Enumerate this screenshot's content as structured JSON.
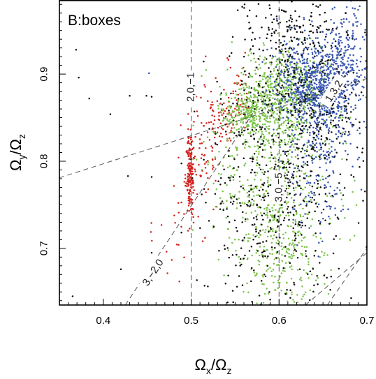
{
  "chart_data": {
    "type": "scatter",
    "panel_label": "B:boxes",
    "xlim": [
      0.35,
      0.7
    ],
    "ylim": [
      0.635,
      0.985
    ],
    "xticks": [
      0.4,
      0.5,
      0.6,
      0.7
    ],
    "yticks": [
      0.7,
      0.8,
      0.9
    ],
    "xtick_labels": [
      "0.4",
      "0.5",
      "0.6",
      "0.7"
    ],
    "ytick_labels": [
      "0.7",
      "0.8",
      "0.9"
    ],
    "xlabel": {
      "main": "Ω",
      "sub1": "x",
      "sep": "/Ω",
      "sub2": "z"
    },
    "ylabel": {
      "main": "Ω",
      "sub1": "y",
      "sep": "/Ω",
      "sub2": "z"
    },
    "grid": false,
    "colors": {
      "black": "#111111",
      "red": "#d4231e",
      "green": "#7cc24a",
      "blue": "#3a56b0"
    },
    "series": [
      {
        "color_key": "red",
        "clusters": [
          {
            "cx": 0.499,
            "cy": 0.785,
            "sx": 0.0025,
            "sy": 0.022,
            "n": 160
          },
          {
            "cx": 0.515,
            "cy": 0.805,
            "sx": 0.012,
            "sy": 0.03,
            "n": 60
          },
          {
            "cx": 0.535,
            "cy": 0.85,
            "sx": 0.012,
            "sy": 0.02,
            "n": 80
          },
          {
            "cx": 0.555,
            "cy": 0.875,
            "sx": 0.006,
            "sy": 0.02,
            "n": 40
          },
          {
            "cx": 0.48,
            "cy": 0.715,
            "sx": 0.015,
            "sy": 0.04,
            "n": 25
          }
        ]
      },
      {
        "color_key": "green",
        "clusters": [
          {
            "cx": 0.605,
            "cy": 0.875,
            "sx": 0.028,
            "sy": 0.025,
            "n": 600
          },
          {
            "cx": 0.59,
            "cy": 0.79,
            "sx": 0.033,
            "sy": 0.06,
            "n": 550
          },
          {
            "cx": 0.565,
            "cy": 0.855,
            "sx": 0.012,
            "sy": 0.012,
            "n": 180
          },
          {
            "cx": 0.6,
            "cy": 0.69,
            "sx": 0.025,
            "sy": 0.035,
            "n": 200
          }
        ]
      },
      {
        "color_key": "blue",
        "clusters": [
          {
            "cx": 0.645,
            "cy": 0.89,
            "sx": 0.023,
            "sy": 0.026,
            "n": 800
          },
          {
            "cx": 0.645,
            "cy": 0.8,
            "sx": 0.02,
            "sy": 0.045,
            "n": 220
          },
          {
            "cx": 0.68,
            "cy": 0.93,
            "sx": 0.012,
            "sy": 0.03,
            "n": 150
          }
        ]
      },
      {
        "color_key": "black",
        "clusters": [
          {
            "cx": 0.62,
            "cy": 0.86,
            "sx": 0.04,
            "sy": 0.05,
            "n": 420
          },
          {
            "cx": 0.595,
            "cy": 0.74,
            "sx": 0.04,
            "sy": 0.055,
            "n": 350
          },
          {
            "cx": 0.62,
            "cy": 0.95,
            "sx": 0.035,
            "sy": 0.02,
            "n": 130
          }
        ]
      }
    ],
    "outliers": [
      {
        "x": 0.369,
        "y": 0.928,
        "c": "black"
      },
      {
        "x": 0.372,
        "y": 0.896,
        "c": "black"
      },
      {
        "x": 0.384,
        "y": 0.872,
        "c": "black"
      },
      {
        "x": 0.408,
        "y": 0.854,
        "c": "black"
      },
      {
        "x": 0.43,
        "y": 0.875,
        "c": "black"
      },
      {
        "x": 0.449,
        "y": 0.875,
        "c": "black"
      },
      {
        "x": 0.455,
        "y": 0.874,
        "c": "black"
      },
      {
        "x": 0.452,
        "y": 0.901,
        "c": "blue"
      },
      {
        "x": 0.455,
        "y": 0.782,
        "c": "black"
      },
      {
        "x": 0.428,
        "y": 0.783,
        "c": "black"
      },
      {
        "x": 0.365,
        "y": 0.645,
        "c": "black"
      },
      {
        "x": 0.42,
        "y": 0.676,
        "c": "black"
      },
      {
        "x": 0.455,
        "y": 0.695,
        "c": "black"
      }
    ],
    "resonance_lines": [
      {
        "label": "2,0,−1",
        "points": [
          [
            0.5,
            0.635
          ],
          [
            0.5,
            0.985
          ]
        ],
        "label_at": [
          0.5,
          0.885
        ],
        "label_rotate": -90
      },
      {
        "label": "3,0,−5",
        "points": [
          [
            0.6,
            0.635
          ],
          [
            0.6,
            0.985
          ]
        ],
        "label_at": [
          0.6,
          0.77
        ],
        "label_rotate": -90
      },
      {
        "label": "3,−2,0",
        "points": [
          [
            0.425,
            0.635
          ],
          [
            0.57,
            0.855
          ]
        ],
        "label_at": [
          0.457,
          0.672
        ],
        "label_rotate": -57
      },
      {
        "label": "1,3,2",
        "points": [
          [
            0.35,
            0.781
          ],
          [
            0.58,
            0.855
          ],
          [
            0.7,
            0.895
          ]
        ],
        "label_at": [
          0.663,
          0.88
        ],
        "label_rotate": -58
      },
      {
        "label": "",
        "points": [
          [
            0.6,
            0.985
          ],
          [
            0.67,
            0.985
          ]
        ]
      },
      {
        "label": "",
        "points": [
          [
            0.63,
            0.635
          ],
          [
            0.7,
            0.695
          ]
        ]
      },
      {
        "label": "",
        "points": [
          [
            0.655,
            0.635
          ],
          [
            0.7,
            0.7
          ]
        ]
      }
    ]
  }
}
